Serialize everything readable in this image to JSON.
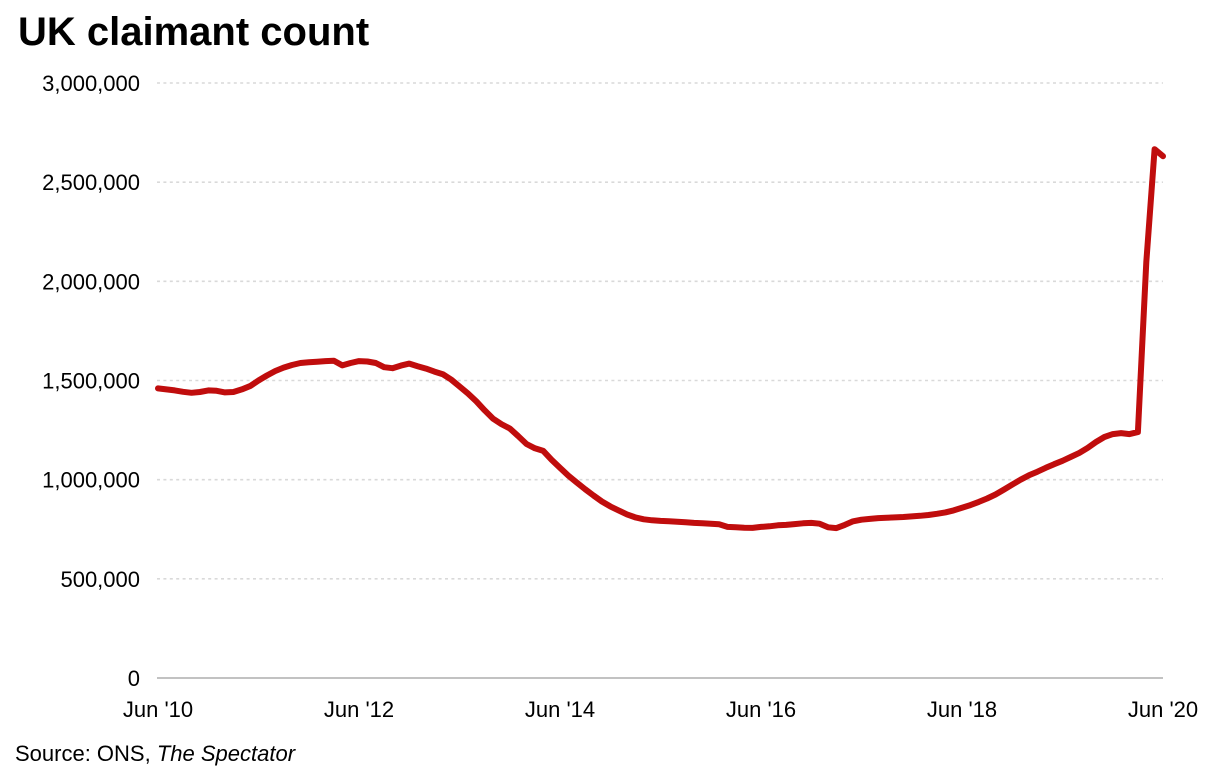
{
  "page": {
    "background_color": "#ffffff"
  },
  "chart_data": {
    "type": "line",
    "title": "UK claimant count",
    "source_prefix": "Source: ONS, ",
    "source_publication": "The Spectator",
    "legend": "none",
    "grid": "horizontal-dashed",
    "line_color": "#c00d0d",
    "grid_color": "#d9d9d9",
    "axis_color": "#c2c2c2",
    "text_color": "#000000",
    "ylim": [
      0,
      3000000
    ],
    "y_ticks": [
      {
        "value": 0,
        "label": "0"
      },
      {
        "value": 500000,
        "label": "500,000"
      },
      {
        "value": 1000000,
        "label": "1,000,000"
      },
      {
        "value": 1500000,
        "label": "1,500,000"
      },
      {
        "value": 2000000,
        "label": "2,000,000"
      },
      {
        "value": 2500000,
        "label": "2,500,000"
      },
      {
        "value": 3000000,
        "label": "3,000,000"
      }
    ],
    "x_axis_unit": "months since Jun 2010",
    "x_range_months": [
      0,
      120
    ],
    "x_ticks": [
      {
        "month": 0,
        "label": "Jun '10"
      },
      {
        "month": 24,
        "label": "Jun '12"
      },
      {
        "month": 48,
        "label": "Jun '14"
      },
      {
        "month": 72,
        "label": "Jun '16"
      },
      {
        "month": 96,
        "label": "Jun '18"
      },
      {
        "month": 120,
        "label": "Jun '20"
      }
    ],
    "series": [
      {
        "name": "UK claimant count",
        "frequency": "monthly",
        "start_month": "Jun 2010",
        "end_month": "Jun 2020",
        "values": [
          1460000,
          1455000,
          1450000,
          1443000,
          1438000,
          1442000,
          1450000,
          1448000,
          1440000,
          1442000,
          1455000,
          1472000,
          1500000,
          1525000,
          1548000,
          1565000,
          1578000,
          1588000,
          1592000,
          1595000,
          1598000,
          1600000,
          1576000,
          1588000,
          1598000,
          1596000,
          1588000,
          1567000,
          1562000,
          1575000,
          1585000,
          1572000,
          1560000,
          1545000,
          1532000,
          1505000,
          1470000,
          1435000,
          1395000,
          1350000,
          1308000,
          1280000,
          1258000,
          1220000,
          1180000,
          1158000,
          1145000,
          1100000,
          1060000,
          1020000,
          985000,
          952000,
          920000,
          890000,
          865000,
          845000,
          825000,
          810000,
          800000,
          795000,
          792000,
          790000,
          788000,
          785000,
          782000,
          780000,
          778000,
          775000,
          762000,
          760000,
          758000,
          757000,
          762000,
          765000,
          770000,
          772000,
          776000,
          780000,
          782000,
          778000,
          760000,
          756000,
          772000,
          790000,
          798000,
          802000,
          806000,
          808000,
          810000,
          812000,
          815000,
          818000,
          822000,
          828000,
          835000,
          845000,
          858000,
          872000,
          888000,
          905000,
          925000,
          950000,
          975000,
          1000000,
          1022000,
          1040000,
          1060000,
          1078000,
          1095000,
          1115000,
          1135000,
          1160000,
          1190000,
          1215000,
          1230000,
          1235000,
          1230000,
          1240000,
          2097000,
          2666000,
          2631000
        ]
      }
    ]
  }
}
